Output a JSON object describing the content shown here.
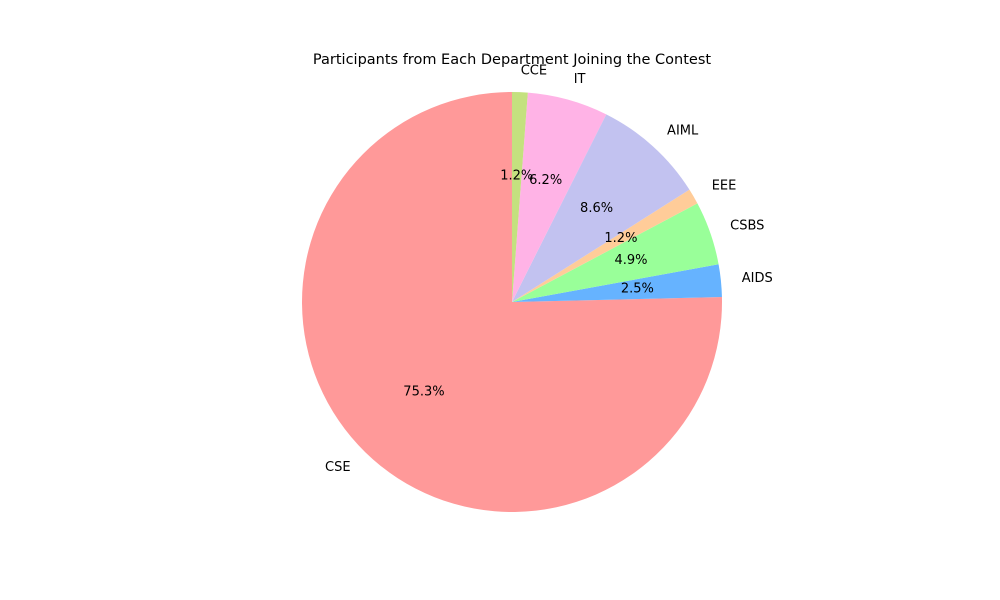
{
  "chart_data": {
    "type": "pie",
    "title": "Participants from Each Department Joining the Contest",
    "start_angle_deg": 90,
    "direction": "counterclockwise",
    "slices": [
      {
        "label": "CSE",
        "pct_label": "75.3%",
        "value": 75.3,
        "color": "#ff9999"
      },
      {
        "label": "AIDS",
        "pct_label": "2.5%",
        "value": 2.5,
        "color": "#66b3ff"
      },
      {
        "label": "CSBS",
        "pct_label": "4.9%",
        "value": 4.9,
        "color": "#99ff99"
      },
      {
        "label": "EEE",
        "pct_label": "1.2%",
        "value": 1.2,
        "color": "#ffcc99"
      },
      {
        "label": "AIML",
        "pct_label": "8.6%",
        "value": 8.6,
        "color": "#c2c2f0"
      },
      {
        "label": "IT",
        "pct_label": "6.2%",
        "value": 6.2,
        "color": "#ffb3e6"
      },
      {
        "label": "CCE",
        "pct_label": "1.2%",
        "value": 1.2,
        "color": "#c4e17f"
      }
    ]
  }
}
